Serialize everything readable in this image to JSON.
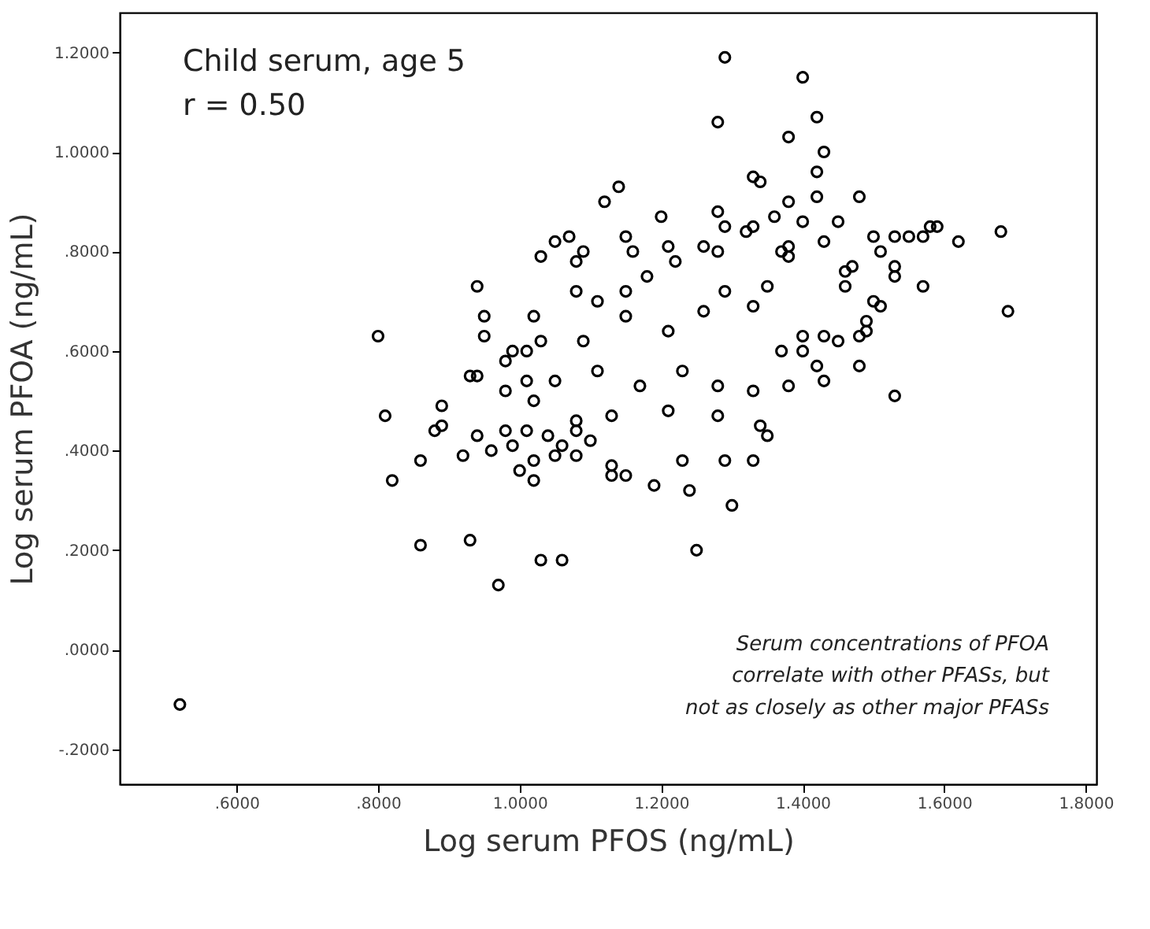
{
  "chart_data": {
    "type": "scatter",
    "xlabel": "Log serum PFOS (ng/mL)",
    "ylabel": "Log serum PFOA (ng/mL)",
    "annotations": [
      "Child serum, age 5",
      "r = 0.50",
      "Serum concentrations of PFOA\ncorrelate with other PFASs, but\nnot as closely as other major PFASs"
    ],
    "xlim": [
      0.435,
      1.815
    ],
    "ylim": [
      -0.27,
      1.28
    ],
    "xticks": [
      {
        "value": 0.6,
        "label": ".6000"
      },
      {
        "value": 0.8,
        "label": ".8000"
      },
      {
        "value": 1.0,
        "label": "1.0000"
      },
      {
        "value": 1.2,
        "label": "1.2000"
      },
      {
        "value": 1.4,
        "label": "1.4000"
      },
      {
        "value": 1.6,
        "label": "1.6000"
      },
      {
        "value": 1.8,
        "label": "1.8000"
      }
    ],
    "yticks": [
      {
        "value": -0.2,
        "label": "-.2000"
      },
      {
        "value": 0.0,
        "label": ".0000"
      },
      {
        "value": 0.2,
        "label": ".2000"
      },
      {
        "value": 0.4,
        "label": ".4000"
      },
      {
        "value": 0.6,
        "label": ".6000"
      },
      {
        "value": 0.8,
        "label": ".8000"
      },
      {
        "value": 1.0,
        "label": "1.0000"
      },
      {
        "value": 1.2,
        "label": "1.2000"
      }
    ],
    "grid": false,
    "marker": "circle",
    "series": [
      {
        "color": "#000000",
        "x": [
          1.29,
          1.4,
          1.28,
          1.42,
          1.38,
          1.43,
          1.42,
          1.33,
          1.34,
          1.14,
          1.12,
          1.38,
          1.42,
          1.48,
          1.2,
          1.28,
          1.36,
          1.45,
          1.29,
          1.32,
          1.33,
          1.4,
          1.59,
          1.58,
          1.68,
          1.53,
          1.55,
          1.5,
          1.51,
          1.57,
          1.62,
          1.43,
          1.05,
          1.07,
          1.09,
          1.08,
          1.15,
          1.16,
          1.21,
          1.26,
          1.28,
          1.38,
          1.38,
          1.53,
          1.47,
          1.46,
          1.53,
          1.57,
          1.69,
          1.46,
          1.5,
          1.51,
          1.49,
          1.49,
          1.48,
          1.45,
          1.43,
          1.42,
          1.43,
          1.48,
          1.53,
          1.37,
          1.4,
          1.23,
          1.29,
          1.33,
          1.35,
          1.24,
          1.3,
          1.25,
          1.19,
          1.13,
          1.15,
          1.13,
          1.08,
          1.05,
          1.06,
          0.82,
          0.86,
          0.86,
          0.93,
          0.97,
          0.92,
          0.96,
          0.99,
          1.0,
          1.02,
          1.03,
          0.52,
          0.94,
          0.98,
          0.8,
          0.94,
          0.95,
          0.95,
          1.03,
          1.02,
          0.81,
          0.89,
          0.89,
          0.94,
          0.93,
          0.98,
          0.99,
          1.01,
          0.98,
          1.01,
          1.02,
          1.08,
          1.11,
          1.15,
          1.18,
          1.22,
          1.09,
          1.15,
          1.21,
          1.26,
          1.29,
          1.33,
          1.35,
          1.05,
          1.11,
          1.17,
          1.23,
          1.28,
          1.33,
          1.38,
          1.13,
          1.21,
          1.28,
          1.34,
          1.08,
          1.4,
          1.37,
          1.03,
          0.88,
          1.01,
          1.02,
          1.04,
          1.06,
          1.1,
          1.08
        ],
        "values": [
          1.19,
          1.15,
          1.06,
          1.07,
          1.03,
          1.0,
          0.96,
          0.95,
          0.94,
          0.93,
          0.9,
          0.9,
          0.91,
          0.91,
          0.87,
          0.88,
          0.87,
          0.86,
          0.85,
          0.84,
          0.85,
          0.86,
          0.85,
          0.85,
          0.84,
          0.83,
          0.83,
          0.83,
          0.8,
          0.83,
          0.82,
          0.82,
          0.82,
          0.83,
          0.8,
          0.78,
          0.83,
          0.8,
          0.81,
          0.81,
          0.8,
          0.81,
          0.79,
          0.77,
          0.77,
          0.76,
          0.75,
          0.73,
          0.68,
          0.73,
          0.7,
          0.69,
          0.66,
          0.64,
          0.63,
          0.62,
          0.63,
          0.57,
          0.54,
          0.57,
          0.51,
          0.6,
          0.6,
          0.38,
          0.38,
          0.38,
          0.43,
          0.32,
          0.29,
          0.2,
          0.33,
          0.37,
          0.35,
          0.35,
          0.39,
          0.39,
          0.18,
          0.34,
          0.38,
          0.21,
          0.22,
          0.13,
          0.39,
          0.4,
          0.41,
          0.36,
          0.34,
          0.18,
          -0.11,
          0.43,
          0.44,
          0.63,
          0.73,
          0.67,
          0.63,
          0.79,
          0.67,
          0.47,
          0.49,
          0.45,
          0.55,
          0.55,
          0.58,
          0.6,
          0.6,
          0.52,
          0.54,
          0.5,
          0.72,
          0.7,
          0.72,
          0.75,
          0.78,
          0.62,
          0.67,
          0.64,
          0.68,
          0.72,
          0.69,
          0.73,
          0.54,
          0.56,
          0.53,
          0.56,
          0.53,
          0.52,
          0.53,
          0.47,
          0.48,
          0.47,
          0.45,
          0.46,
          0.63,
          0.8,
          0.62,
          0.44,
          0.44,
          0.38,
          0.43,
          0.41,
          0.42,
          0.44
        ]
      }
    ]
  }
}
